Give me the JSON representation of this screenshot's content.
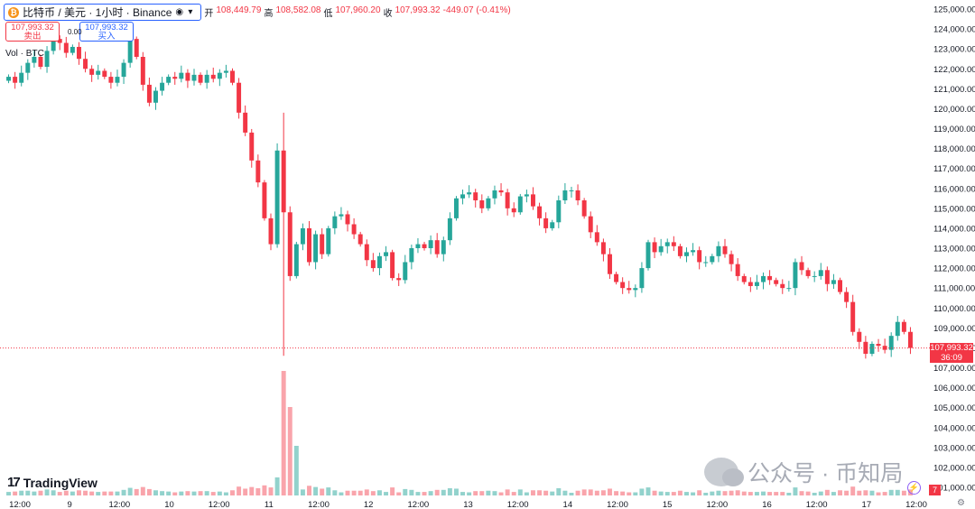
{
  "legend": {
    "symbol_icon": "bitcoin-coin-icon",
    "coin_glyph": "₿",
    "symbol_title": "比特币 / 美元 · 1小时 · Binance",
    "ohlc": [
      {
        "label": "开",
        "value": "108,449.79"
      },
      {
        "label": "高",
        "value": "108,582.08"
      },
      {
        "label": "低",
        "value": "107,960.20"
      },
      {
        "label": "收",
        "value": "107,993.32"
      }
    ],
    "change": "-449.07 (-0.41%)"
  },
  "order_panel": {
    "sell_price": "107,993.32",
    "sell_label": "卖出",
    "buy_price": "107,993.32",
    "buy_label": "买入",
    "spread": "0.00"
  },
  "volume_legend": {
    "label": "Vol · BTC"
  },
  "price_axis": {
    "labels": [
      "125,000.00",
      "124,000.00",
      "123,000.00",
      "122,000.00",
      "121,000.00",
      "120,000.00",
      "119,000.00",
      "118,000.00",
      "117,000.00",
      "116,000.00",
      "115,000.00",
      "114,000.00",
      "113,000.00",
      "112,000.00",
      "111,000.00",
      "110,000.00",
      "109,000.00",
      "108,000.00",
      "107,000.00",
      "106,000.00",
      "105,000.00",
      "104,000.00",
      "103,000.00",
      "102,000.00",
      "101,000.00"
    ],
    "last_price": "107,993.32",
    "countdown": "36:09"
  },
  "time_axis": {
    "labels": [
      "12:00",
      "9",
      "12:00",
      "10",
      "12:00",
      "11",
      "12:00",
      "12",
      "12:00",
      "13",
      "12:00",
      "14",
      "12:00",
      "15",
      "12:00",
      "16",
      "12:00",
      "17",
      "12:00"
    ]
  },
  "branding": {
    "logo": "TradingView"
  },
  "watermark": {
    "text": "公众号 · 币知局"
  },
  "badges": {
    "alert_count": "7"
  },
  "colors": {
    "up": "#26a69a",
    "down": "#f23645",
    "accent": "#2962ff"
  },
  "chart_data": {
    "type": "candlestick",
    "timeframe": "1h",
    "candles_close": [
      121600,
      121300,
      121800,
      122300,
      122600,
      122100,
      122900,
      123500,
      123300,
      122800,
      123100,
      122500,
      122000,
      121700,
      121900,
      121600,
      121300,
      121600,
      122300,
      123500,
      122600,
      121200,
      120300,
      120900,
      121300,
      121600,
      121500,
      121800,
      121400,
      121700,
      121300,
      121700,
      121500,
      121800,
      121900,
      121300,
      119800,
      118800,
      117400,
      116300,
      114500,
      113200,
      117900,
      114800,
      111600,
      113200,
      114000,
      112300,
      113700,
      112700,
      114000,
      114600,
      114700,
      114200,
      113700,
      113200,
      112400,
      112000,
      112600,
      112800,
      111500,
      111400,
      112300,
      113000,
      113200,
      113000,
      113400,
      112700,
      113400,
      114500,
      115500,
      115700,
      115800,
      115400,
      115000,
      115500,
      115900,
      115800,
      115000,
      114800,
      115600,
      115700,
      115100,
      114500,
      114000,
      114300,
      115400,
      115900,
      115900,
      115400,
      114600,
      113800,
      113300,
      112700,
      111700,
      111300,
      111000,
      110900,
      111000,
      112000,
      113300,
      112800,
      113100,
      113300,
      113100,
      112600,
      112800,
      112900,
      112300,
      112300,
      112600,
      113100,
      112700,
      112200,
      111600,
      111300,
      111100,
      111300,
      111600,
      111400,
      111200,
      111000,
      111000,
      112300,
      111900,
      111600,
      111600,
      111900,
      111200,
      111400,
      110800,
      110300,
      108800,
      108300,
      107700,
      108200,
      108100,
      107900,
      108600,
      109300,
      108800,
      107993
    ],
    "volume_spike_time": "11 09:00",
    "last_price": 107993.32,
    "ylim": [
      101000,
      125000
    ],
    "grid": false
  }
}
